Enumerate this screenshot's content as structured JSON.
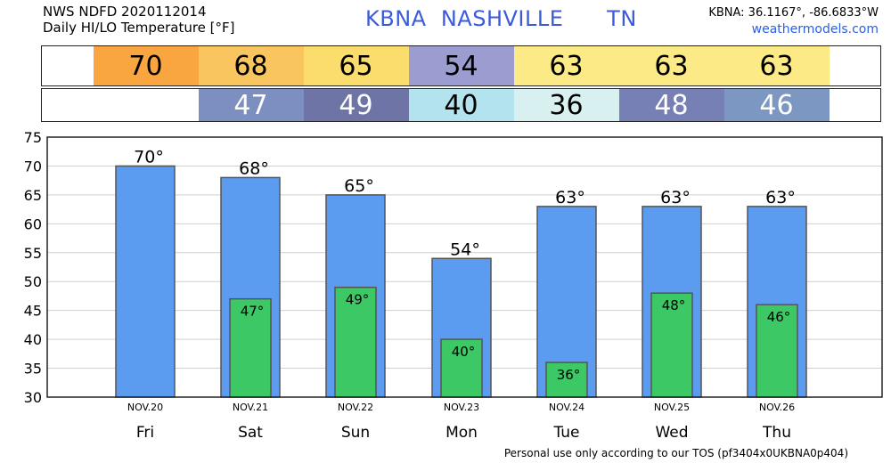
{
  "header": {
    "line1": "NWS NDFD 2020112014",
    "line2": "Daily HI/LO Temperature [°F]",
    "title": "KBNA  NASHVILLE      TN",
    "coords": "KBNA: 36.1167°, -86.6833°W",
    "site": "weathermodels.com"
  },
  "hi_row": [
    {
      "value": "70",
      "color": "#f9a640"
    },
    {
      "value": "68",
      "color": "#f9c55f"
    },
    {
      "value": "65",
      "color": "#fbdd6e"
    },
    {
      "value": "54",
      "color": "#9b9ccf"
    },
    {
      "value": "63",
      "color": "#fbea86"
    },
    {
      "value": "63",
      "color": "#fbea86"
    },
    {
      "value": "63",
      "color": "#fbea86"
    }
  ],
  "lo_row": [
    {
      "value": "",
      "color": "#ffffff"
    },
    {
      "value": "47",
      "color": "#7d8fc0"
    },
    {
      "value": "49",
      "color": "#6f74a6"
    },
    {
      "value": "40",
      "color": "#b3e3ee"
    },
    {
      "value": "36",
      "color": "#d8f0f0"
    },
    {
      "value": "48",
      "color": "#7680b4"
    },
    {
      "value": "46",
      "color": "#7d97c3"
    }
  ],
  "chart_data": {
    "type": "bar",
    "categories": [
      "Fri",
      "Sat",
      "Sun",
      "Mon",
      "Tue",
      "Wed",
      "Thu"
    ],
    "dates": [
      "NOV.20",
      "NOV.21",
      "NOV.22",
      "NOV.23",
      "NOV.24",
      "NOV.25",
      "NOV.26"
    ],
    "series": [
      {
        "values": [
          70,
          68,
          65,
          54,
          63,
          63,
          63
        ],
        "labels": [
          "70°",
          "68°",
          "65°",
          "54°",
          "63°",
          "63°",
          "63°"
        ],
        "color": "#5b9cf0"
      },
      {
        "values": [
          null,
          47,
          49,
          40,
          36,
          48,
          46
        ],
        "labels": [
          "",
          "47°",
          "49°",
          "40°",
          "36°",
          "48°",
          "46°"
        ],
        "color": "#3cc864"
      }
    ],
    "yticks": [
      "30",
      "35",
      "40",
      "45",
      "50",
      "55",
      "60",
      "65",
      "70",
      "75"
    ],
    "ylim": [
      30,
      75
    ],
    "grid": true
  },
  "footer": "Personal use only according to our TOS (pf3404x0UKBNA0p404)"
}
